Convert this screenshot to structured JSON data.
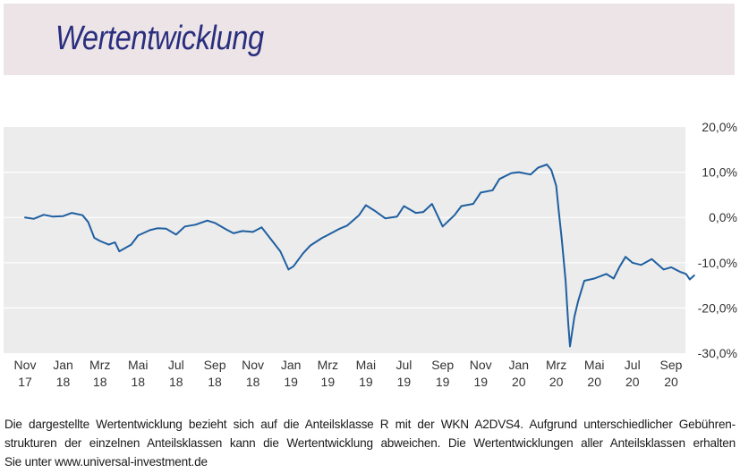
{
  "header": {
    "title": "Wertentwicklung"
  },
  "footnote": {
    "line1": "Die dargestellte Wertentwicklung bezieht sich auf die Anteilsklasse R mit der WKN A2DVS4. Aufgrund unterschiedlicher Gebühren-",
    "line2": "strukturen der einzelnen Anteilsklassen kann die Wertentwicklung abweichen. Die Wertentwicklungen aller Anteilsklassen erhalten",
    "line3": "Sie unter www.universal-investment.de"
  },
  "chart_data": {
    "type": "line",
    "title": "Wertentwicklung",
    "ylabel": "",
    "xlabel": "",
    "ylim": [
      -30,
      20
    ],
    "yticks": [
      -30,
      -20,
      -10,
      0,
      10,
      20
    ],
    "ytick_labels": [
      "-30,0%",
      "-20,0%",
      "-10,0%",
      "0,0%",
      "10,0%",
      "20,0%"
    ],
    "xlim": [
      "2017-11-01",
      "2020-10-15"
    ],
    "xticks": [
      {
        "date": "2017-11-01",
        "line1": "Nov",
        "line2": "17"
      },
      {
        "date": "2018-01-01",
        "line1": "Jan",
        "line2": "18"
      },
      {
        "date": "2018-03-01",
        "line1": "Mrz",
        "line2": "18"
      },
      {
        "date": "2018-05-01",
        "line1": "Mai",
        "line2": "18"
      },
      {
        "date": "2018-07-01",
        "line1": "Jul",
        "line2": "18"
      },
      {
        "date": "2018-09-01",
        "line1": "Sep",
        "line2": "18"
      },
      {
        "date": "2018-11-01",
        "line1": "Nov",
        "line2": "18"
      },
      {
        "date": "2019-01-01",
        "line1": "Jan",
        "line2": "19"
      },
      {
        "date": "2019-03-01",
        "line1": "Mrz",
        "line2": "19"
      },
      {
        "date": "2019-05-01",
        "line1": "Mai",
        "line2": "19"
      },
      {
        "date": "2019-07-01",
        "line1": "Jul",
        "line2": "19"
      },
      {
        "date": "2019-09-01",
        "line1": "Sep",
        "line2": "19"
      },
      {
        "date": "2019-11-01",
        "line1": "Nov",
        "line2": "19"
      },
      {
        "date": "2020-01-01",
        "line1": "Jan",
        "line2": "20"
      },
      {
        "date": "2020-03-01",
        "line1": "Mrz",
        "line2": "20"
      },
      {
        "date": "2020-05-01",
        "line1": "Mai",
        "line2": "20"
      },
      {
        "date": "2020-07-01",
        "line1": "Jul",
        "line2": "20"
      },
      {
        "date": "2020-09-01",
        "line1": "Sep",
        "line2": "20"
      }
    ],
    "grid": true,
    "legend": "none",
    "colors": {
      "line": "#1f5fa0",
      "plot_bg": "#ececec",
      "grid": "#ffffff"
    },
    "series": [
      {
        "x": [
          "2017-11-01",
          "2017-11-15",
          "2017-12-01",
          "2017-12-15",
          "2018-01-01",
          "2018-01-15",
          "2018-02-01",
          "2018-02-10",
          "2018-02-20",
          "2018-03-01",
          "2018-03-15",
          "2018-03-25",
          "2018-04-01",
          "2018-04-20",
          "2018-05-01",
          "2018-05-20",
          "2018-06-01",
          "2018-06-15",
          "2018-07-01",
          "2018-07-15",
          "2018-08-01",
          "2018-08-20",
          "2018-09-01",
          "2018-09-20",
          "2018-10-01",
          "2018-10-15",
          "2018-11-01",
          "2018-11-15",
          "2018-12-01",
          "2018-12-15",
          "2018-12-28",
          "2019-01-05",
          "2019-01-20",
          "2019-02-01",
          "2019-02-20",
          "2019-03-01",
          "2019-03-20",
          "2019-04-01",
          "2019-04-20",
          "2019-05-01",
          "2019-05-15",
          "2019-06-01",
          "2019-06-20",
          "2019-07-01",
          "2019-07-20",
          "2019-08-01",
          "2019-08-15",
          "2019-09-01",
          "2019-09-20",
          "2019-10-01",
          "2019-10-20",
          "2019-11-01",
          "2019-11-20",
          "2019-12-01",
          "2019-12-20",
          "2020-01-01",
          "2020-01-20",
          "2020-02-01",
          "2020-02-15",
          "2020-02-22",
          "2020-03-01",
          "2020-03-05",
          "2020-03-10",
          "2020-03-16",
          "2020-03-20",
          "2020-03-23",
          "2020-03-30",
          "2020-04-05",
          "2020-04-15",
          "2020-05-01",
          "2020-05-20",
          "2020-06-01",
          "2020-06-10",
          "2020-06-20",
          "2020-07-01",
          "2020-07-15",
          "2020-08-01",
          "2020-08-20",
          "2020-09-01",
          "2020-09-15",
          "2020-09-25",
          "2020-10-01",
          "2020-10-08"
        ],
        "y": [
          0.0,
          -0.3,
          0.6,
          0.2,
          0.3,
          1.0,
          0.5,
          -1.0,
          -4.5,
          -5.2,
          -6.0,
          -5.5,
          -7.5,
          -6.0,
          -4.0,
          -2.8,
          -2.4,
          -2.5,
          -3.8,
          -2.0,
          -1.6,
          -0.7,
          -1.2,
          -2.7,
          -3.5,
          -3.0,
          -3.2,
          -2.2,
          -5.0,
          -7.5,
          -11.5,
          -10.8,
          -8.0,
          -6.2,
          -4.5,
          -3.9,
          -2.5,
          -1.8,
          0.5,
          2.7,
          1.5,
          -0.2,
          0.2,
          2.5,
          1.0,
          1.2,
          3.0,
          -2.0,
          0.5,
          2.5,
          3.0,
          5.5,
          6.0,
          8.5,
          9.8,
          10.0,
          9.5,
          11.0,
          11.7,
          10.5,
          7.0,
          1.5,
          -5.0,
          -14.0,
          -23.0,
          -28.5,
          -22.0,
          -18.5,
          -14.0,
          -13.5,
          -12.5,
          -13.5,
          -11.0,
          -8.7,
          -10.0,
          -10.5,
          -9.2,
          -11.5,
          -11.0,
          -12.0,
          -12.5,
          -13.7,
          -12.8
        ]
      }
    ]
  }
}
